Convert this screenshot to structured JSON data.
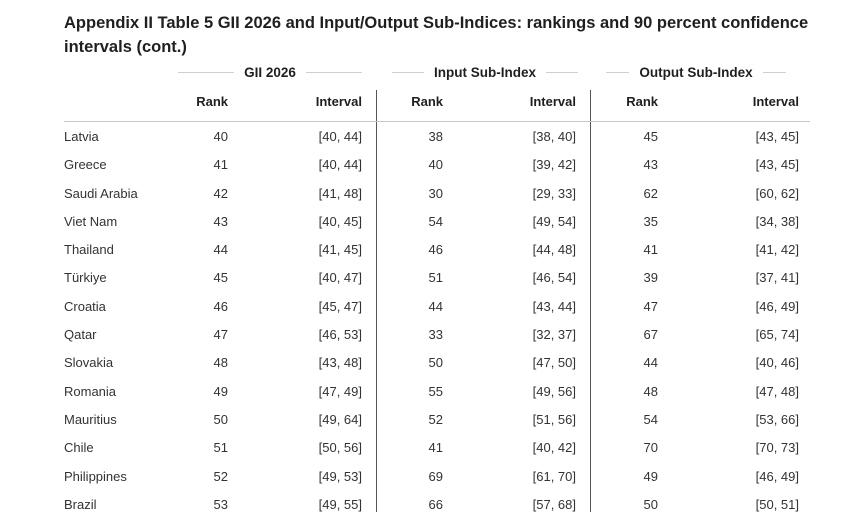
{
  "title": "Appendix II Table 5 GII 2026 and Input/Output Sub-Indices: rankings and 90 percent confidence intervals (cont.)",
  "groups": {
    "gii": "GII 2026",
    "input": "Input Sub-Index",
    "output": "Output Sub-Index"
  },
  "subheaders": {
    "rank": "Rank",
    "interval": "Interval"
  },
  "rows": [
    {
      "country": "Latvia",
      "gii_rank": "40",
      "gii_int": "[40, 44]",
      "in_rank": "38",
      "in_int": "[38, 40]",
      "out_rank": "45",
      "out_int": "[43, 45]"
    },
    {
      "country": "Greece",
      "gii_rank": "41",
      "gii_int": "[40, 44]",
      "in_rank": "40",
      "in_int": "[39, 42]",
      "out_rank": "43",
      "out_int": "[43, 45]"
    },
    {
      "country": "Saudi Arabia",
      "gii_rank": "42",
      "gii_int": "[41, 48]",
      "in_rank": "30",
      "in_int": "[29, 33]",
      "out_rank": "62",
      "out_int": "[60, 62]"
    },
    {
      "country": "Viet Nam",
      "gii_rank": "43",
      "gii_int": "[40, 45]",
      "in_rank": "54",
      "in_int": "[49, 54]",
      "out_rank": "35",
      "out_int": "[34, 38]"
    },
    {
      "country": "Thailand",
      "gii_rank": "44",
      "gii_int": "[41, 45]",
      "in_rank": "46",
      "in_int": "[44, 48]",
      "out_rank": "41",
      "out_int": "[41, 42]"
    },
    {
      "country": "Türkiye",
      "gii_rank": "45",
      "gii_int": "[40, 47]",
      "in_rank": "51",
      "in_int": "[46, 54]",
      "out_rank": "39",
      "out_int": "[37, 41]"
    },
    {
      "country": "Croatia",
      "gii_rank": "46",
      "gii_int": "[45, 47]",
      "in_rank": "44",
      "in_int": "[43, 44]",
      "out_rank": "47",
      "out_int": "[46, 49]"
    },
    {
      "country": "Qatar",
      "gii_rank": "47",
      "gii_int": "[46, 53]",
      "in_rank": "33",
      "in_int": "[32, 37]",
      "out_rank": "67",
      "out_int": "[65, 74]"
    },
    {
      "country": "Slovakia",
      "gii_rank": "48",
      "gii_int": "[43, 48]",
      "in_rank": "50",
      "in_int": "[47, 50]",
      "out_rank": "44",
      "out_int": "[40, 46]"
    },
    {
      "country": "Romania",
      "gii_rank": "49",
      "gii_int": "[47, 49]",
      "in_rank": "55",
      "in_int": "[49, 56]",
      "out_rank": "48",
      "out_int": "[47, 48]"
    },
    {
      "country": "Mauritius",
      "gii_rank": "50",
      "gii_int": "[49, 64]",
      "in_rank": "52",
      "in_int": "[51, 56]",
      "out_rank": "54",
      "out_int": "[53, 66]"
    },
    {
      "country": "Chile",
      "gii_rank": "51",
      "gii_int": "[50, 56]",
      "in_rank": "41",
      "in_int": "[40, 42]",
      "out_rank": "70",
      "out_int": "[70, 73]"
    },
    {
      "country": "Philippines",
      "gii_rank": "52",
      "gii_int": "[49, 53]",
      "in_rank": "69",
      "in_int": "[61, 70]",
      "out_rank": "49",
      "out_int": "[46, 49]"
    },
    {
      "country": "Brazil",
      "gii_rank": "53",
      "gii_int": "[49, 55]",
      "in_rank": "66",
      "in_int": "[57, 68]",
      "out_rank": "50",
      "out_int": "[50, 51]"
    }
  ]
}
